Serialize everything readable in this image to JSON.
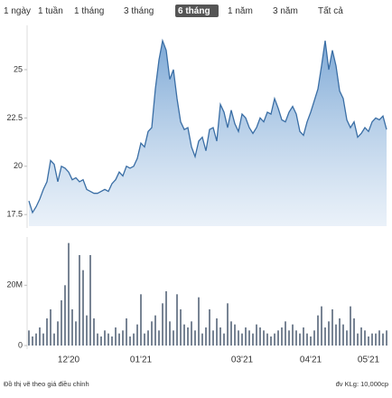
{
  "range_buttons": [
    "1 ngày",
    "1 tuần",
    "1 tháng",
    "3 tháng",
    "6 tháng",
    "1 năm",
    "3 năm",
    "Tất cả"
  ],
  "selected_range": 4,
  "chart_data": [
    {
      "type": "area",
      "color": "#3a6ea5",
      "values": [
        18.2,
        17.6,
        17.9,
        18.3,
        18.8,
        19.2,
        20.3,
        20.1,
        19.2,
        20.0,
        19.9,
        19.7,
        19.3,
        19.4,
        19.2,
        19.3,
        18.8,
        18.7,
        18.6,
        18.6,
        18.7,
        18.8,
        18.7,
        19.1,
        19.3,
        19.7,
        19.5,
        20.0,
        19.9,
        20.0,
        20.4,
        21.2,
        21.0,
        21.8,
        22.0,
        24.0,
        25.5,
        26.5,
        26.0,
        24.5,
        25.0,
        23.5,
        22.3,
        21.9,
        22.0,
        21.0,
        20.5,
        21.3,
        21.5,
        20.8,
        21.9,
        22.0,
        21.3,
        23.2,
        22.8,
        22.0,
        22.9,
        22.2,
        21.8,
        22.7,
        22.5,
        22.0,
        21.7,
        22.0,
        22.5,
        22.3,
        22.8,
        22.7,
        23.5,
        23.0,
        22.4,
        22.3,
        22.8,
        23.1,
        22.7,
        21.8,
        21.6,
        22.3,
        22.8,
        23.4,
        24.0,
        25.2,
        26.5,
        25.0,
        26.0,
        25.2,
        23.9,
        23.5,
        22.4,
        22.0,
        22.3,
        21.5,
        21.7,
        22.0,
        21.8,
        22.3,
        22.5,
        22.4,
        22.6,
        21.9
      ],
      "ylim": [
        16.9,
        27.2
      ],
      "yticks": [
        17.5,
        20,
        22.5,
        25
      ]
    },
    {
      "type": "bar",
      "color": "#56657a",
      "categories": [
        null,
        null,
        null,
        null,
        null,
        null,
        null,
        null,
        null,
        null,
        null,
        "12'20",
        null,
        null,
        null,
        null,
        null,
        null,
        null,
        null,
        null,
        null,
        null,
        null,
        null,
        null,
        null,
        null,
        null,
        null,
        null,
        "01'21",
        null,
        null,
        null,
        null,
        null,
        null,
        null,
        null,
        null,
        null,
        null,
        null,
        null,
        null,
        null,
        null,
        null,
        null,
        null,
        null,
        null,
        null,
        null,
        null,
        null,
        null,
        null,
        "03'21",
        null,
        null,
        null,
        null,
        null,
        null,
        null,
        null,
        null,
        null,
        null,
        null,
        null,
        null,
        null,
        null,
        null,
        null,
        "04'21",
        null,
        null,
        null,
        null,
        null,
        null,
        null,
        null,
        null,
        null,
        null,
        null,
        null,
        null,
        null,
        "05'21",
        null,
        null,
        null,
        null,
        null
      ],
      "values": [
        5000000,
        3000000,
        4000000,
        6000000,
        4000000,
        9000000,
        12000000,
        4000000,
        8000000,
        15000000,
        20000000,
        34000000,
        12000000,
        8000000,
        30000000,
        25000000,
        10000000,
        30000000,
        9000000,
        4000000,
        3000000,
        5000000,
        4000000,
        3000000,
        6000000,
        4000000,
        5000000,
        9000000,
        3000000,
        4000000,
        7000000,
        17000000,
        4000000,
        5000000,
        8000000,
        10000000,
        5000000,
        14000000,
        18000000,
        8000000,
        5000000,
        17000000,
        12000000,
        7000000,
        6000000,
        8000000,
        5000000,
        16000000,
        4000000,
        6000000,
        12000000,
        5000000,
        9000000,
        6000000,
        4000000,
        14000000,
        8000000,
        7000000,
        5000000,
        4000000,
        6000000,
        5000000,
        4000000,
        7000000,
        6000000,
        5000000,
        4000000,
        3000000,
        4000000,
        5000000,
        6000000,
        8000000,
        5000000,
        7000000,
        5000000,
        4000000,
        6000000,
        4000000,
        3000000,
        5000000,
        10000000,
        13000000,
        6000000,
        8000000,
        12000000,
        7000000,
        9000000,
        7000000,
        5000000,
        13000000,
        9000000,
        4000000,
        6000000,
        5000000,
        3000000,
        4000000,
        4000000,
        5000000,
        4000000,
        5000000
      ],
      "ylim": [
        0,
        36000000
      ],
      "yticks": [
        0,
        {
          "value": 20000000,
          "label": "20M"
        }
      ]
    }
  ],
  "note": "Đồ thị vẽ theo giá điều chỉnh",
  "unit_note": "đv KLg: 10,000cp"
}
